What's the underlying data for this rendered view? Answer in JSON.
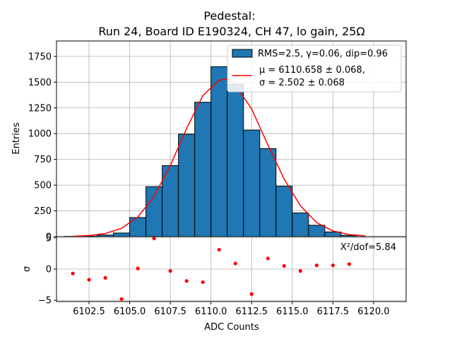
{
  "chart_data": {
    "title_line1": "Pedestal:",
    "title_line2": "Run 24, Board ID E190324, CH 47, lo gain, 25Ω",
    "top": {
      "type": "bar",
      "ylabel": "Entries",
      "xlim": [
        6100.5,
        6122.0
      ],
      "ylim": [
        0,
        1900
      ],
      "yticks": [
        0,
        250,
        500,
        750,
        1000,
        1250,
        1500,
        1750
      ],
      "ytick_labels": [
        "0",
        "250",
        "500",
        "750",
        "1000",
        "1250",
        "1500",
        "1750"
      ],
      "bin_width": 1.0,
      "bins": [
        {
          "x": 6101.5,
          "value": 2
        },
        {
          "x": 6102.5,
          "value": 4
        },
        {
          "x": 6103.5,
          "value": 15
        },
        {
          "x": 6104.5,
          "value": 35
        },
        {
          "x": 6105.5,
          "value": 185
        },
        {
          "x": 6106.5,
          "value": 485
        },
        {
          "x": 6107.5,
          "value": 690
        },
        {
          "x": 6108.5,
          "value": 995
        },
        {
          "x": 6109.5,
          "value": 1305
        },
        {
          "x": 6110.5,
          "value": 1650
        },
        {
          "x": 6111.5,
          "value": 1480
        },
        {
          "x": 6112.5,
          "value": 1035
        },
        {
          "x": 6113.5,
          "value": 855
        },
        {
          "x": 6114.5,
          "value": 490
        },
        {
          "x": 6115.5,
          "value": 230
        },
        {
          "x": 6116.5,
          "value": 110
        },
        {
          "x": 6117.5,
          "value": 45
        },
        {
          "x": 6118.5,
          "value": 12
        }
      ],
      "fit_curve": {
        "x": [
          6101.5,
          6102.5,
          6103.5,
          6104.5,
          6105.5,
          6106.5,
          6107.5,
          6108.5,
          6109.5,
          6110.5,
          6111.0,
          6111.5,
          6112.5,
          6113.5,
          6114.5,
          6115.5,
          6116.5,
          6117.5,
          6118.5,
          6119.5
        ],
        "y": [
          3,
          10,
          30,
          80,
          190,
          390,
          690,
          1050,
          1370,
          1520,
          1530,
          1470,
          1240,
          890,
          560,
          300,
          135,
          55,
          20,
          6
        ]
      },
      "legend": {
        "position": "upper right",
        "hist_label": "RMS=2.5, γ=0.06, dip=0.96",
        "fit_label_line1": "μ = 6110.658 ± 0.068,",
        "fit_label_line2": "σ = 2.502 ± 0.068"
      },
      "colors": {
        "bar": "#1f77b4",
        "edge": "#000000",
        "fit": "#ff0000"
      }
    },
    "bottom": {
      "type": "scatter",
      "xlabel": "ADC Counts",
      "ylabel": "σ",
      "xlim": [
        6100.5,
        6122.0
      ],
      "ylim": [
        -5.2,
        5.2
      ],
      "xticks": [
        6102.5,
        6105.0,
        6107.5,
        6110.0,
        6112.5,
        6115.0,
        6117.5,
        6120.0
      ],
      "xtick_labels": [
        "6102.5",
        "6105.0",
        "6107.5",
        "6110.0",
        "6112.5",
        "6115.0",
        "6117.5",
        "6120.0"
      ],
      "yticks": [
        -5,
        0,
        5
      ],
      "ytick_labels": [
        "−5",
        "0",
        "5"
      ],
      "points": [
        {
          "x": 6101.5,
          "y": -0.7
        },
        {
          "x": 6102.5,
          "y": -1.7
        },
        {
          "x": 6103.5,
          "y": -1.4
        },
        {
          "x": 6104.5,
          "y": -4.8
        },
        {
          "x": 6105.5,
          "y": 0.1
        },
        {
          "x": 6106.5,
          "y": 4.9
        },
        {
          "x": 6107.5,
          "y": -0.3
        },
        {
          "x": 6108.5,
          "y": -1.9
        },
        {
          "x": 6109.5,
          "y": -2.1
        },
        {
          "x": 6110.5,
          "y": 3.1
        },
        {
          "x": 6111.5,
          "y": 0.9
        },
        {
          "x": 6112.5,
          "y": -4.0
        },
        {
          "x": 6113.5,
          "y": 1.7
        },
        {
          "x": 6114.5,
          "y": 0.5
        },
        {
          "x": 6115.5,
          "y": -0.3
        },
        {
          "x": 6116.5,
          "y": 0.6
        },
        {
          "x": 6117.5,
          "y": 0.6
        },
        {
          "x": 6118.5,
          "y": 0.8
        }
      ],
      "annotation": "X²/dof=5.84",
      "colors": {
        "point": "#ff0000"
      }
    }
  }
}
